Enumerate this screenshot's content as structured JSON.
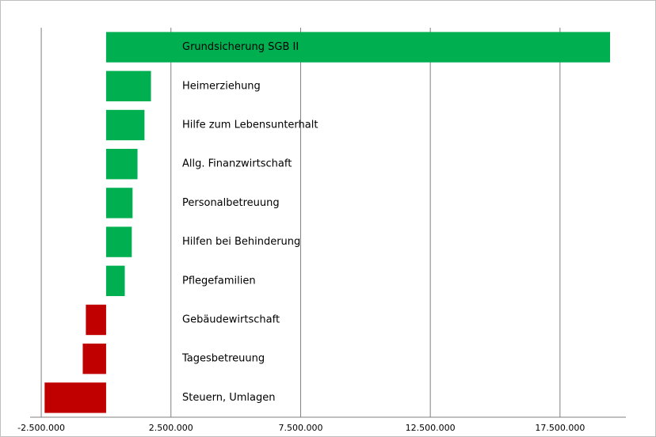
{
  "chart_data": {
    "type": "barh",
    "categories": [
      "Grundsicherung SGB II",
      "Heimerziehung",
      "Hilfe zum Lebensunterhalt",
      "Allg. Finanzwirtschaft",
      "Personalbetreuung",
      "Hilfen bei Behinderung",
      "Pflegefamilien",
      "Gebäudewirtschaft",
      "Tagesbetreuung",
      "Steuern, Umlagen"
    ],
    "values": [
      19430000,
      1730000,
      1480000,
      1210000,
      1020000,
      990000,
      720000,
      -780000,
      -900000,
      -2370000
    ],
    "colors": {
      "positive": "#00b050",
      "negative": "#c00000"
    },
    "xlim": [
      -2930000,
      20040000
    ],
    "xticks": [
      {
        "value": -2500000,
        "label": "-2.500.000"
      },
      {
        "value": 2500000,
        "label": "2.500.000"
      },
      {
        "value": 7500000,
        "label": "7.500.000"
      },
      {
        "value": 12500000,
        "label": "12.500.000"
      },
      {
        "value": 17500000,
        "label": "17.500.000"
      }
    ],
    "grid": true
  }
}
